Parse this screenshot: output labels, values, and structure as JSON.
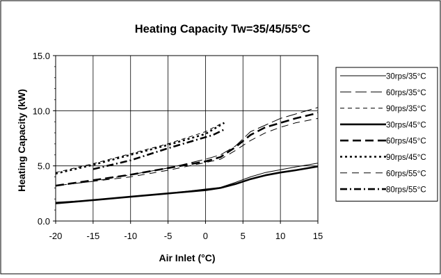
{
  "chart_data": {
    "type": "line",
    "title": "Heating Capacity Tw=35/45/55°C",
    "xlabel": "Air Inlet (°C)",
    "ylabel": "Heating Capacity (kW)",
    "xlim": [
      -20,
      15
    ],
    "ylim": [
      0,
      15
    ],
    "x_ticks": [
      -20,
      -15,
      -10,
      -5,
      0,
      5,
      10,
      15
    ],
    "x_tick_labels": [
      "-20",
      "-15",
      "-10",
      "-5",
      "0",
      "5",
      "10",
      "15"
    ],
    "y_ticks": [
      0,
      5,
      10,
      15
    ],
    "y_tick_labels": [
      "0.0",
      "5.0",
      "10.0",
      "15.0"
    ],
    "grid": true,
    "legend_position": "right",
    "series": [
      {
        "name": "30rps/35°C",
        "style": "thin-solid",
        "x": [
          -20,
          -15,
          -10,
          -5,
          0,
          2,
          4,
          6,
          8,
          10,
          12,
          15
        ],
        "y": [
          1.7,
          1.9,
          2.2,
          2.5,
          2.9,
          3.05,
          3.5,
          4.0,
          4.4,
          4.65,
          4.9,
          5.25
        ]
      },
      {
        "name": "60rps/35°C",
        "style": "thin-long-dash",
        "x": [
          -20,
          -15,
          -10,
          -5,
          0,
          2,
          4,
          6,
          8,
          10,
          12,
          15
        ],
        "y": [
          3.2,
          3.6,
          4.2,
          4.8,
          5.6,
          6.0,
          6.8,
          8.1,
          8.7,
          9.3,
          9.7,
          10.3
        ]
      },
      {
        "name": "90rps/35°C",
        "style": "thin-dash",
        "x": [
          -20,
          -15,
          -10,
          -5,
          0,
          1,
          2
        ],
        "y": [
          4.4,
          5.2,
          6.1,
          7.0,
          8.1,
          8.45,
          8.8
        ]
      },
      {
        "name": "30rps/45°C",
        "style": "thick-solid",
        "x": [
          -20,
          -15,
          -10,
          -5,
          0,
          2,
          4,
          6,
          8,
          10,
          12,
          15
        ],
        "y": [
          1.6,
          1.9,
          2.2,
          2.5,
          2.8,
          3.0,
          3.35,
          3.8,
          4.15,
          4.4,
          4.6,
          4.95
        ]
      },
      {
        "name": "60rps/45°C",
        "style": "thick-dash",
        "x": [
          -20,
          -15,
          -10,
          -5,
          0,
          2,
          4,
          6,
          8,
          10,
          12,
          15
        ],
        "y": [
          3.2,
          3.7,
          4.2,
          4.8,
          5.4,
          5.8,
          6.7,
          7.8,
          8.5,
          8.9,
          9.3,
          9.8
        ]
      },
      {
        "name": "90rps/45°C",
        "style": "thick-dot",
        "x": [
          -20,
          -15,
          -10,
          -5,
          0,
          1,
          2.5
        ],
        "y": [
          4.3,
          5.1,
          6.0,
          6.9,
          7.9,
          8.3,
          8.9
        ]
      },
      {
        "name": "60rps/55°C",
        "style": "thin-dash-dash",
        "x": [
          -20,
          -15,
          -10,
          -5,
          0,
          2,
          4,
          6,
          8,
          10,
          12,
          15
        ],
        "y": [
          3.2,
          3.6,
          4.0,
          4.6,
          5.3,
          5.6,
          6.4,
          7.3,
          8.0,
          8.5,
          8.9,
          9.3
        ]
      },
      {
        "name": "80rps/55°C",
        "style": "thick-dash-dot",
        "x": [
          -15,
          -10,
          -5,
          0,
          1,
          2.5
        ],
        "y": [
          4.7,
          5.5,
          6.6,
          7.6,
          7.8,
          8.3
        ]
      }
    ]
  }
}
